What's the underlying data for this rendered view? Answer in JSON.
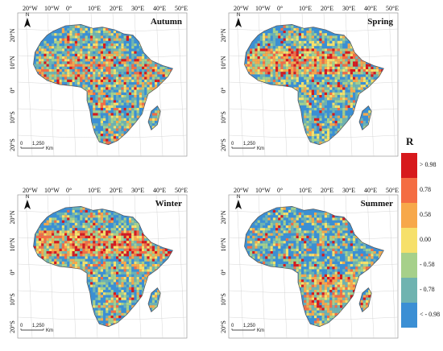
{
  "panels": [
    {
      "season": "Autumn",
      "bias": "north"
    },
    {
      "season": "Spring",
      "bias": "sahel"
    },
    {
      "season": "Winter",
      "bias": "sahel"
    },
    {
      "season": "Summer",
      "bias": "south"
    }
  ],
  "lon_labels": [
    "20°W",
    "10°W",
    "0°",
    "10°E",
    "20°E",
    "30°E",
    "40°E",
    "50°E"
  ],
  "lat_labels": [
    "20°N",
    "10°N",
    "0°",
    "10°S",
    "20°S"
  ],
  "scale_bar": {
    "zero": "0",
    "value": "1,250",
    "unit": "Km"
  },
  "north_label": "N",
  "legend": {
    "title": "R",
    "labels": [
      "> 0.98",
      "0.78",
      "0.58",
      "0.00",
      "- 0.58",
      "- 0.78",
      "< - 0.98"
    ],
    "colors": [
      "#d7191c",
      "#f46d43",
      "#f7a84a",
      "#f6e06a",
      "#a6d08a",
      "#6fb3b0",
      "#3b8fd4"
    ]
  },
  "colors": {
    "land_base": "#3b8fd4",
    "ocean": "#ffffff",
    "outline": "#555555"
  }
}
